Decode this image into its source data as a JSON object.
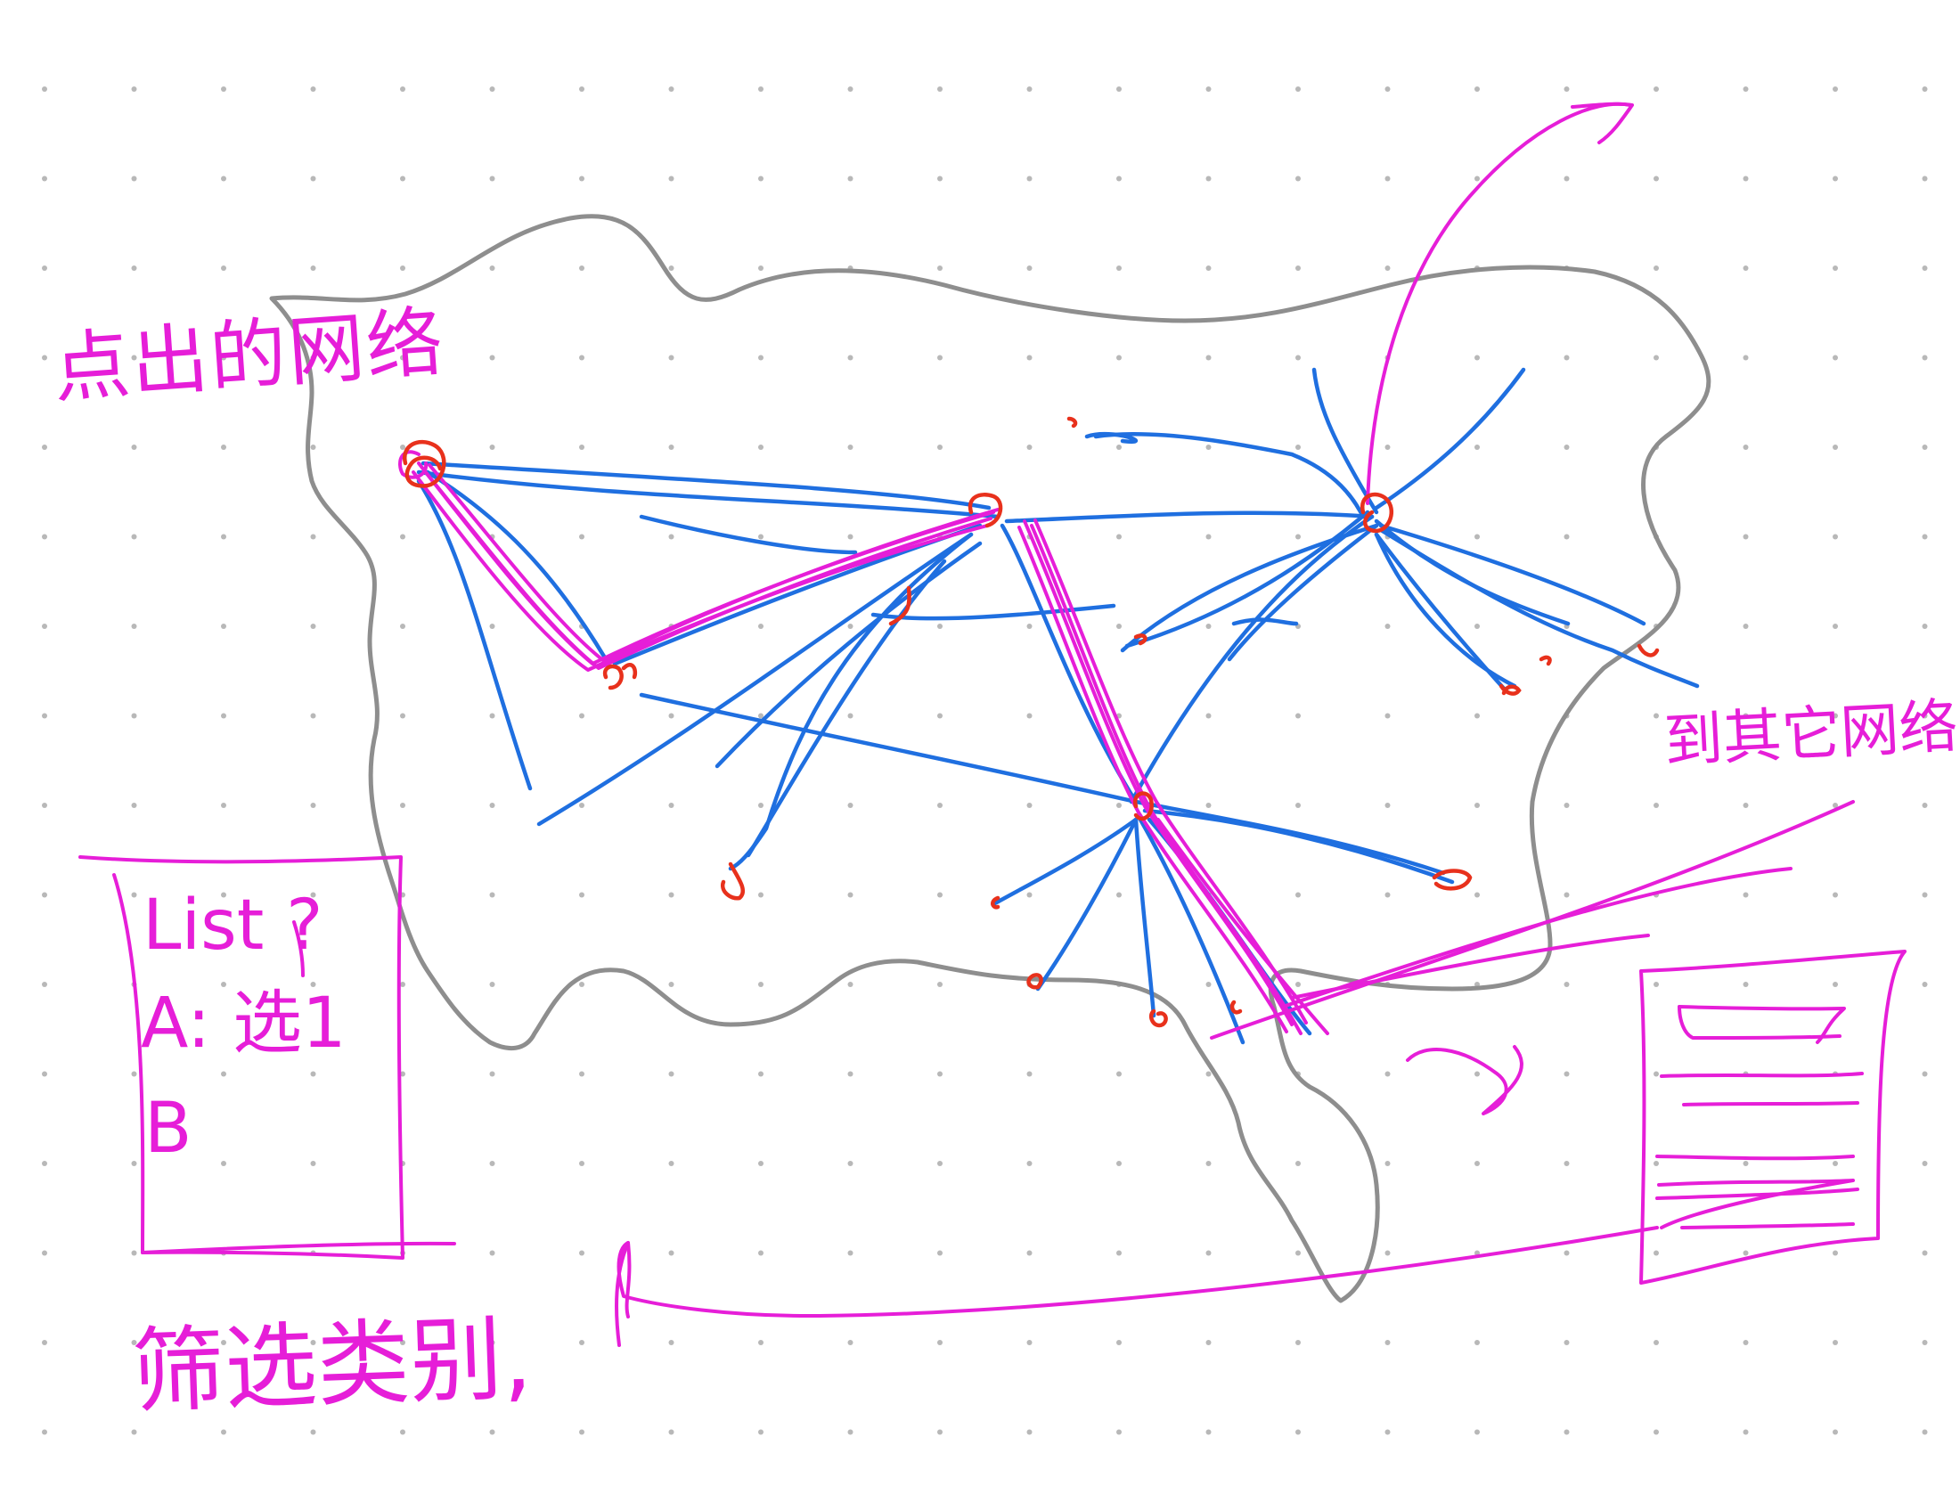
{
  "canvas": {
    "background": "#ffffff",
    "grid_dot_color": "#b8b8b8"
  },
  "colors": {
    "outline": "#8e8e8e",
    "network": "#1f6fe0",
    "node": "#e8311c",
    "annotation": "#e61ed8"
  },
  "annotations": {
    "top_left": "点出的网络",
    "right": "到其它网络?",
    "bottom": "筛选类别,"
  },
  "list_panel": {
    "title": "List ?",
    "items": [
      "A: 选1",
      "B"
    ]
  }
}
